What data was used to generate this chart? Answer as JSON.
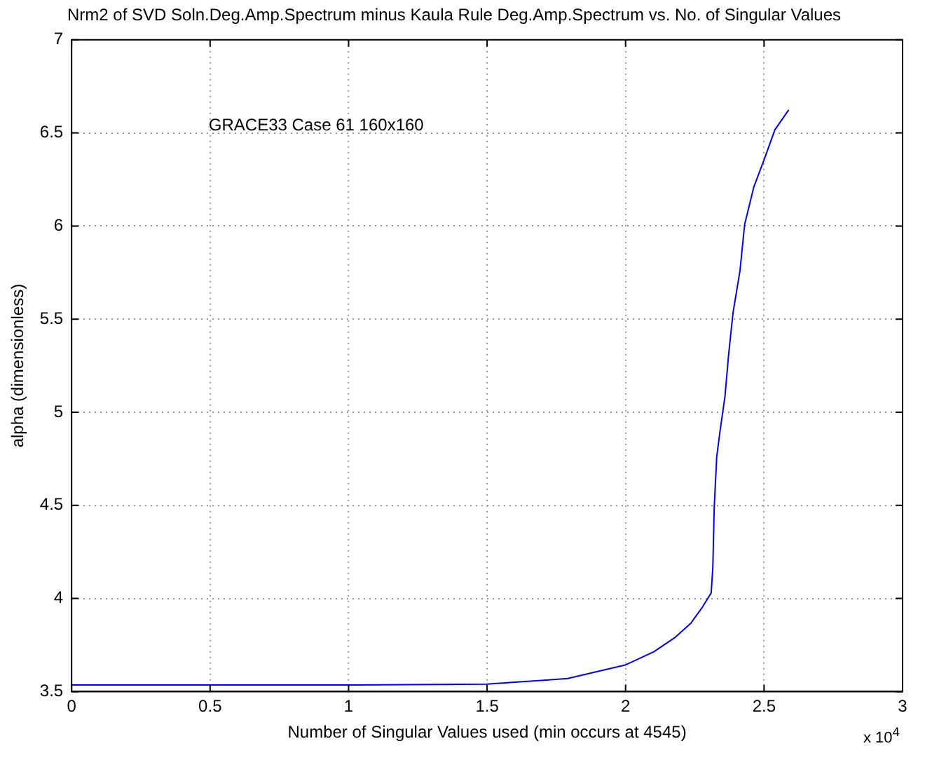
{
  "chart_data": {
    "type": "line",
    "title": "Nrm2 of SVD Soln.Deg.Amp.Spectrum minus Kaula Rule Deg.Amp.Spectrum vs. No. of Singular Values",
    "xlabel": "Number of Singular Values used (min occurs at 4545)",
    "ylabel": "alpha (dimensionless)",
    "annotations": [
      "GRACE33 Case 61 160x160",
      "x 10$^{4}$"
    ],
    "x": [
      0,
      0.5,
      1,
      1.5,
      1.791,
      2.001,
      2.102,
      2.177,
      2.236,
      2.278,
      2.309,
      2.315,
      2.32,
      2.329,
      2.342,
      2.359,
      2.372,
      2.388,
      2.413,
      2.43,
      2.463,
      2.5,
      2.539,
      2.589
    ],
    "series": [
      {
        "color": "#0000ff",
        "values": [
          3.535,
          3.535,
          3.535,
          3.54,
          3.57,
          3.644,
          3.714,
          3.789,
          3.868,
          3.955,
          4.03,
          4.167,
          4.49,
          4.76,
          4.91,
          5.087,
          5.31,
          5.535,
          5.76,
          6.01,
          6.21,
          6.356,
          6.517,
          6.624
        ]
      }
    ],
    "xlim": [
      0,
      3
    ],
    "xticks": [
      0,
      0.5,
      1,
      1.5,
      2,
      2.5,
      3
    ],
    "ylim": [
      3.5,
      7
    ],
    "yticks": [
      3.5,
      4,
      4.5,
      5,
      5.5,
      6,
      6.5,
      7
    ],
    "grid": true,
    "legend": false,
    "marker": "none",
    "line_style": "solid"
  }
}
